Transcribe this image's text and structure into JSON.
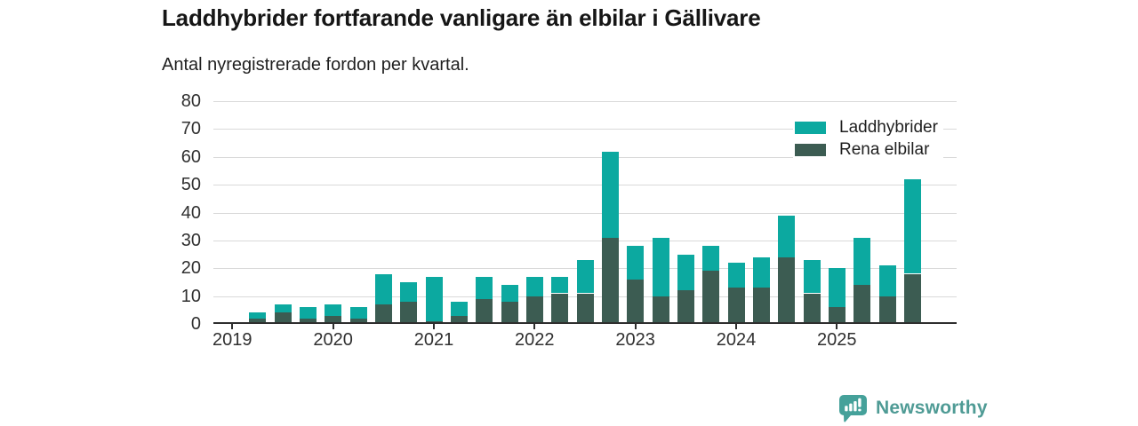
{
  "header": {
    "title": "Laddhybrider fortfarande vanligare än elbilar i Gällivare",
    "subtitle": "Antal nyregistrerade fordon per kvartal."
  },
  "legend": [
    {
      "label": "Laddhybrider",
      "color": "#0ca9a0"
    },
    {
      "label": "Rena elbilar",
      "color": "#3c5c52"
    }
  ],
  "footer": {
    "brand": "Newsworthy"
  },
  "colors": {
    "laddhybrider": "#0ca9a0",
    "rena_elbilar": "#3c5c52",
    "grid": "#d9d9d9",
    "axis": "#2e2e2e",
    "text": "#303030",
    "logo": "#45a19a",
    "logo_text": "#4f9b95"
  },
  "chart_data": {
    "type": "bar",
    "stacked": true,
    "title": "Laddhybrider fortfarande vanligare än elbilar i Gällivare",
    "subtitle": "Antal nyregistrerade fordon per kvartal.",
    "xlabel": "",
    "ylabel": "",
    "ylim": [
      0,
      80
    ],
    "yticks": [
      0,
      10,
      20,
      30,
      40,
      50,
      60,
      70,
      80
    ],
    "grid": "horizontal",
    "legend_position": "top-right-inside",
    "x_tick_labels": [
      "2019",
      "2020",
      "2021",
      "2022",
      "2023",
      "2024",
      "2025"
    ],
    "categories": [
      "2019 Q1",
      "2019 Q2",
      "2019 Q3",
      "2019 Q4",
      "2020 Q1",
      "2020 Q2",
      "2020 Q3",
      "2020 Q4",
      "2021 Q1",
      "2021 Q2",
      "2021 Q3",
      "2021 Q4",
      "2022 Q1",
      "2022 Q2",
      "2022 Q3",
      "2022 Q4",
      "2023 Q1",
      "2023 Q2",
      "2023 Q3",
      "2023 Q4",
      "2024 Q1",
      "2024 Q2",
      "2024 Q3",
      "2024 Q4",
      "2025 Q1",
      "2025 Q2",
      "2025 Q3",
      "2025 Q4"
    ],
    "series": [
      {
        "name": "Laddhybrider",
        "color": "#0ca9a0",
        "stack_order": "top",
        "values": [
          0,
          2,
          3,
          4,
          4,
          4,
          11,
          7,
          16,
          5,
          8,
          6,
          7,
          6,
          12,
          31,
          12,
          21,
          13,
          9,
          9,
          11,
          15,
          12,
          14,
          17,
          11,
          34
        ]
      },
      {
        "name": "Rena elbilar",
        "color": "#3c5c52",
        "stack_order": "bottom",
        "values": [
          0,
          2,
          4,
          2,
          3,
          2,
          7,
          8,
          1,
          3,
          9,
          8,
          10,
          11,
          11,
          31,
          16,
          10,
          12,
          19,
          13,
          13,
          24,
          11,
          6,
          14,
          10,
          18
        ]
      }
    ],
    "stacked_totals": [
      0,
      4,
      7,
      6,
      7,
      6,
      18,
      15,
      17,
      8,
      17,
      14,
      17,
      17,
      23,
      62,
      28,
      31,
      25,
      28,
      22,
      24,
      39,
      23,
      20,
      31,
      21,
      52
    ]
  }
}
